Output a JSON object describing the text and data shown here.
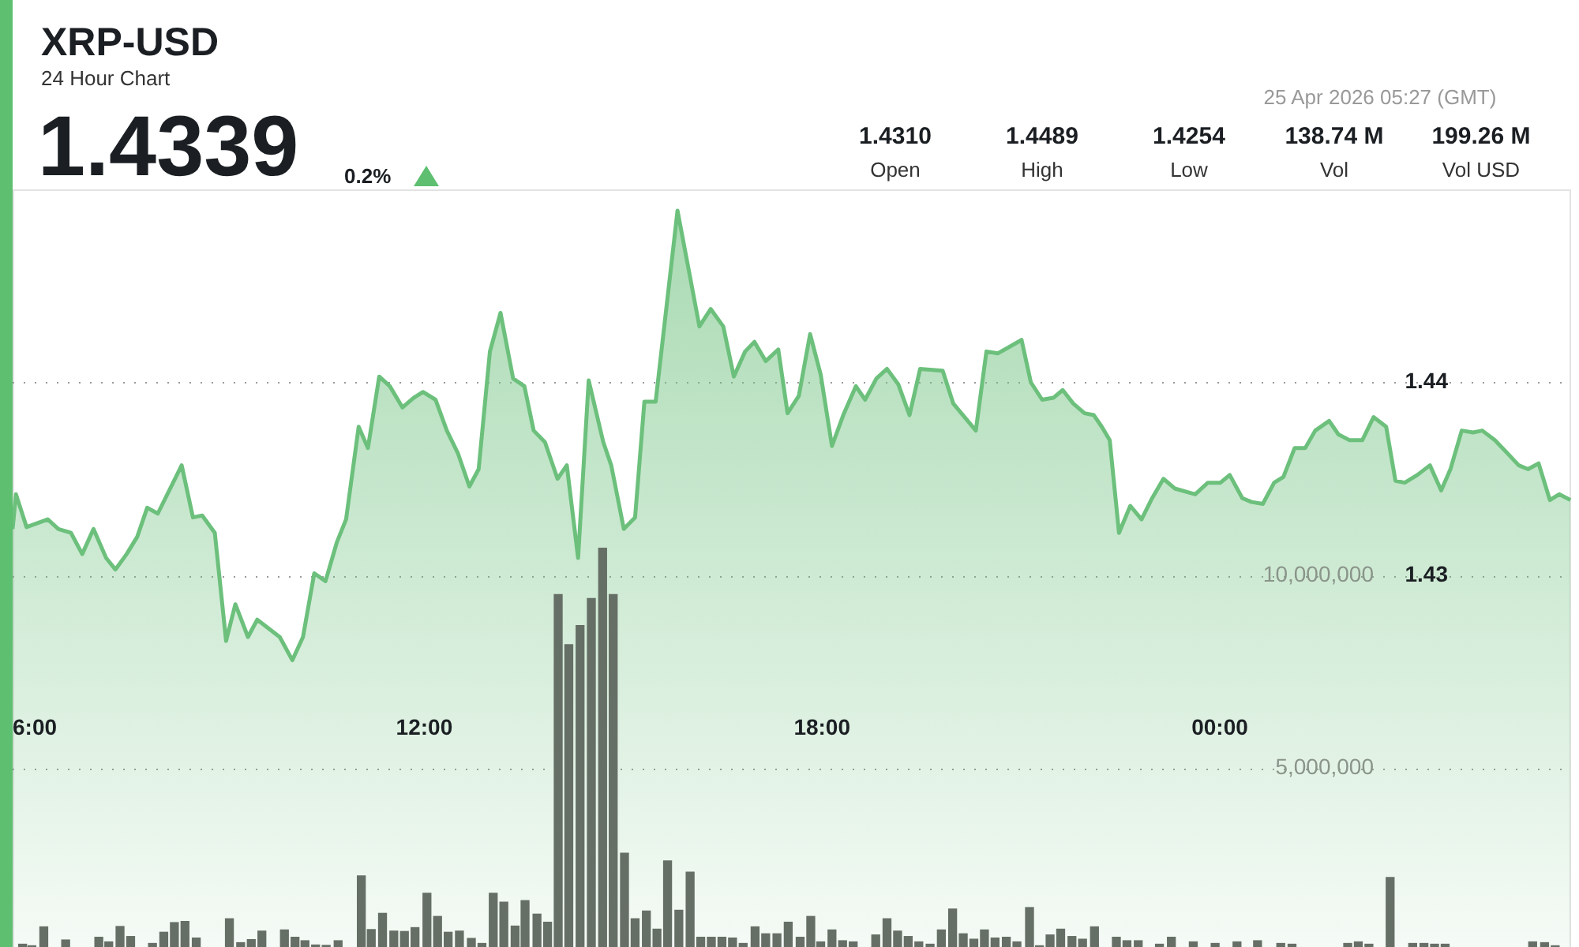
{
  "chart_data": {
    "type": "area",
    "title": "XRP-USD",
    "subtitle": "24 Hour Chart",
    "annotations": [
      "1.4339",
      "0.2%",
      "25 Apr 2026 05:27 (GMT)",
      "1.4310",
      "Open",
      "1.4489",
      "High",
      "1.4254",
      "Low",
      "138.74 M",
      "Vol",
      "199.26 M",
      "Vol USD"
    ],
    "xlim": [
      5.79,
      29.3
    ],
    "xticks": [
      {
        "value": 6,
        "label": "6:00"
      },
      {
        "value": 12,
        "label": "12:00"
      },
      {
        "value": 18,
        "label": "18:00"
      },
      {
        "value": 24,
        "label": "00:00"
      }
    ],
    "ylim": [
      1.41,
      1.45
    ],
    "yticks": [
      1.43,
      1.44
    ],
    "y2lim": [
      0,
      20000000
    ],
    "y2ticks": [
      {
        "value": 5000000,
        "label": "5,000,000"
      },
      {
        "value": 10000000,
        "label": "10,000,000"
      }
    ],
    "grid": "y",
    "marker": "none",
    "line_style": "solid",
    "series": [
      {
        "color": "#6cc07c",
        "x": [
          5.79,
          5.84,
          6.0,
          6.32,
          6.48,
          6.67,
          6.84,
          7.01,
          7.2,
          7.34,
          7.51,
          7.67,
          7.82,
          7.98,
          8.34,
          8.51,
          8.65,
          8.84,
          9.01,
          9.15,
          9.34,
          9.48,
          9.82,
          10.01,
          10.17,
          10.34,
          10.51,
          10.68,
          10.82,
          11.01,
          11.15,
          11.32,
          11.48,
          11.67,
          11.84,
          11.98,
          12.17,
          12.34,
          12.51,
          12.68,
          12.82,
          12.99,
          13.15,
          13.34,
          13.51,
          13.65,
          13.82,
          14.01,
          14.15,
          14.32,
          14.48,
          14.7,
          14.82,
          15.01,
          15.18,
          15.32,
          15.49,
          15.82,
          16.15,
          16.32,
          16.51,
          16.67,
          16.84,
          16.98,
          17.15,
          17.34,
          17.48,
          17.65,
          17.82,
          17.98,
          18.15,
          18.32,
          18.51,
          18.65,
          18.82,
          18.98,
          19.15,
          19.32,
          19.48,
          19.82,
          19.98,
          20.32,
          20.48,
          20.65,
          21.01,
          21.15,
          21.32,
          21.49,
          21.63,
          21.79,
          21.96,
          22.1,
          22.22,
          22.34,
          22.48,
          22.65,
          22.82,
          22.98,
          23.15,
          23.32,
          23.63,
          23.82,
          24.01,
          24.15,
          24.34,
          24.48,
          24.65,
          24.82,
          24.96,
          25.13,
          25.29,
          25.44,
          25.65,
          25.79,
          25.96,
          26.15,
          26.32,
          26.51,
          26.65,
          26.79,
          26.98,
          27.17,
          27.34,
          27.48,
          27.65,
          27.82,
          27.96,
          28.15,
          28.29,
          28.51,
          28.65,
          28.81,
          28.98,
          29.12,
          29.29
        ],
        "values": [
          1.4324,
          1.4342,
          1.4325,
          1.4329,
          1.4324,
          1.4322,
          1.4311,
          1.4324,
          1.4309,
          1.4303,
          1.4311,
          1.432,
          1.4335,
          1.4332,
          1.4357,
          1.433,
          1.4331,
          1.4322,
          1.4266,
          1.4285,
          1.4268,
          1.4277,
          1.4268,
          1.4256,
          1.4268,
          1.4301,
          1.4297,
          1.4317,
          1.4329,
          1.4377,
          1.4366,
          1.4403,
          1.4398,
          1.4387,
          1.4392,
          1.4395,
          1.4391,
          1.4375,
          1.4363,
          1.4346,
          1.4355,
          1.4416,
          1.4436,
          1.4402,
          1.4398,
          1.4375,
          1.4369,
          1.435,
          1.4357,
          1.4309,
          1.4401,
          1.4369,
          1.4357,
          1.4324,
          1.433,
          1.439,
          1.439,
          1.4489,
          1.4429,
          1.4438,
          1.4429,
          1.4403,
          1.4416,
          1.4421,
          1.4411,
          1.4417,
          1.4384,
          1.4393,
          1.4425,
          1.4404,
          1.4367,
          1.4383,
          1.4398,
          1.4391,
          1.4402,
          1.4407,
          1.4399,
          1.4383,
          1.4407,
          1.4406,
          1.4389,
          1.4375,
          1.4416,
          1.4415,
          1.4422,
          1.44,
          1.4391,
          1.4392,
          1.4396,
          1.4389,
          1.4384,
          1.4383,
          1.4377,
          1.437,
          1.4322,
          1.4336,
          1.4329,
          1.434,
          1.435,
          1.4345,
          1.4342,
          1.4348,
          1.4348,
          1.4352,
          1.434,
          1.4338,
          1.4337,
          1.4348,
          1.4351,
          1.4366,
          1.4366,
          1.4375,
          1.438,
          1.4373,
          1.437,
          1.437,
          1.4382,
          1.4377,
          1.4349,
          1.4348,
          1.4352,
          1.4357,
          1.4344,
          1.4355,
          1.4375,
          1.4374,
          1.4375,
          1.437,
          1.4365,
          1.4357,
          1.4355,
          1.4358,
          1.4339,
          1.4342,
          1.4339
        ]
      },
      {
        "type": "bar",
        "axis": "y2",
        "color": "#666f66",
        "x": [
          5.94,
          6.08,
          6.26,
          6.59,
          7.09,
          7.24,
          7.41,
          7.57,
          7.9,
          8.07,
          8.23,
          8.39,
          8.56,
          9.06,
          9.23,
          9.39,
          9.55,
          9.89,
          10.05,
          10.2,
          10.36,
          10.52,
          10.7,
          11.05,
          11.2,
          11.37,
          11.54,
          11.7,
          11.86,
          12.04,
          12.2,
          12.36,
          12.53,
          12.71,
          12.87,
          13.04,
          13.2,
          13.37,
          13.52,
          13.7,
          13.86,
          14.02,
          14.18,
          14.35,
          14.52,
          14.69,
          14.85,
          15.02,
          15.18,
          15.35,
          15.51,
          15.67,
          15.84,
          16.01,
          16.17,
          16.33,
          16.49,
          16.65,
          16.81,
          16.99,
          17.15,
          17.32,
          17.49,
          17.67,
          17.83,
          17.98,
          18.15,
          18.31,
          18.47,
          18.81,
          18.98,
          19.14,
          19.3,
          19.46,
          19.63,
          19.8,
          19.97,
          20.13,
          20.29,
          20.45,
          20.61,
          20.78,
          20.94,
          21.13,
          21.28,
          21.44,
          21.6,
          21.77,
          21.93,
          22.11,
          22.44,
          22.6,
          22.77,
          23.09,
          23.27,
          23.6,
          23.93,
          24.26,
          24.57,
          24.92,
          25.09,
          25.93,
          26.09,
          26.25,
          26.57,
          26.91,
          27.08,
          27.24,
          27.4,
          28.72,
          28.9,
          29.06
        ],
        "values": [
          440000,
          400000,
          890000,
          550000,
          620000,
          500000,
          900000,
          640000,
          460000,
          750000,
          1000000,
          1030000,
          600000,
          1100000,
          480000,
          560000,
          780000,
          810000,
          620000,
          530000,
          420000,
          410000,
          530000,
          2210000,
          820000,
          1240000,
          780000,
          770000,
          870000,
          1760000,
          1160000,
          750000,
          780000,
          590000,
          460000,
          1760000,
          1530000,
          910000,
          1570000,
          1220000,
          1010000,
          9500000,
          8200000,
          8700000,
          9400000,
          10700000,
          9500000,
          2800000,
          1100000,
          1300000,
          830000,
          2600000,
          1320000,
          2310000,
          620000,
          620000,
          620000,
          600000,
          460000,
          890000,
          710000,
          710000,
          1010000,
          620000,
          1160000,
          500000,
          810000,
          530000,
          500000,
          680000,
          1100000,
          780000,
          640000,
          500000,
          440000,
          810000,
          1350000,
          710000,
          570000,
          810000,
          600000,
          620000,
          500000,
          1390000,
          400000,
          680000,
          830000,
          640000,
          570000,
          890000,
          620000,
          530000,
          530000,
          440000,
          620000,
          500000,
          460000,
          500000,
          530000,
          460000,
          440000,
          460000,
          500000,
          440000,
          2170000,
          460000,
          460000,
          440000,
          440000,
          500000,
          480000,
          400000
        ]
      }
    ]
  }
}
